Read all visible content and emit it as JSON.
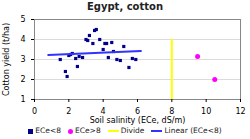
{
  "chart_data": {
    "type": "scatter",
    "title": "Egypt, cotton",
    "xlabel": "Soil salinity (ECe, dS/m)",
    "ylabel": "Cotton yield (t/ha)",
    "xlim": [
      0,
      12
    ],
    "ylim": [
      1,
      5
    ],
    "xticks": [
      0,
      2,
      4,
      6,
      8,
      10,
      12
    ],
    "yticks": [
      1,
      2,
      3,
      4,
      5
    ],
    "grid": true,
    "legend": "bottom",
    "series": [
      {
        "name": "ECe<8",
        "type": "scatter",
        "marker": "square",
        "color": "#00008B",
        "x": [
          1.5,
          1.8,
          1.9,
          2.0,
          2.1,
          2.2,
          2.4,
          2.5,
          2.6,
          2.8,
          3.0,
          3.1,
          3.2,
          3.4,
          3.5,
          3.6,
          3.8,
          4.0,
          4.1,
          4.2,
          4.3,
          4.5,
          4.6,
          4.8,
          5.0,
          5.2,
          5.5,
          5.7,
          5.9
        ],
        "values": [
          3.0,
          2.4,
          2.15,
          3.2,
          3.25,
          3.3,
          3.05,
          2.65,
          3.15,
          3.1,
          4.0,
          3.95,
          4.2,
          3.8,
          4.45,
          4.5,
          4.0,
          3.5,
          3.8,
          3.8,
          3.1,
          3.85,
          3.4,
          3.0,
          2.95,
          3.65,
          2.6,
          3.05,
          3.0
        ]
      },
      {
        "name": "ECe>8",
        "type": "scatter",
        "marker": "circle",
        "color": "#ff00ff",
        "x": [
          9.5,
          10.5
        ],
        "values": [
          3.15,
          2.0
        ]
      },
      {
        "name": "Divide",
        "type": "line",
        "color": "#ffff00",
        "x": [
          8.0,
          8.0
        ],
        "values": [
          1,
          4.0
        ]
      },
      {
        "name": "Linear (ECe<8)",
        "type": "line",
        "color": "#3333ff",
        "x": [
          0.8,
          6.2
        ],
        "values": [
          3.23,
          3.42
        ]
      }
    ]
  }
}
